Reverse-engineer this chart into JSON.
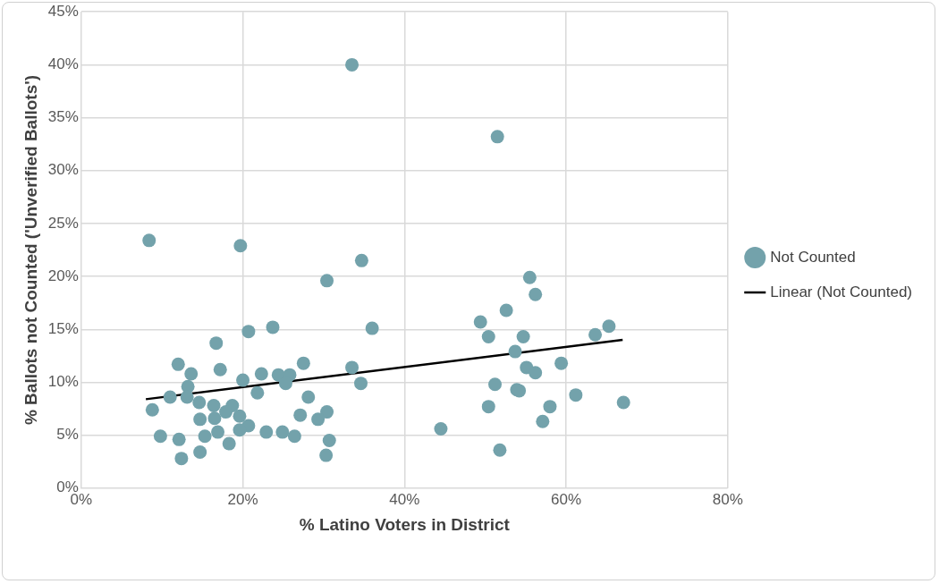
{
  "chart_data": {
    "type": "scatter",
    "xlabel": "% Latino Voters in District",
    "ylabel": "% Ballots not Counted ('Unverified Ballots')",
    "xlim": [
      0,
      80
    ],
    "xticks": [
      {
        "value": 0,
        "label": "0%"
      },
      {
        "value": 20,
        "label": "20%"
      },
      {
        "value": 40,
        "label": "40%"
      },
      {
        "value": 60,
        "label": "60%"
      },
      {
        "value": 80,
        "label": "80%"
      }
    ],
    "ylim": [
      0,
      45
    ],
    "yticks": [
      {
        "value": 0,
        "label": "0%"
      },
      {
        "value": 5,
        "label": "5%"
      },
      {
        "value": 10,
        "label": "10%"
      },
      {
        "value": 15,
        "label": "15%"
      },
      {
        "value": 20,
        "label": "20%"
      },
      {
        "value": 25,
        "label": "25%"
      },
      {
        "value": 30,
        "label": "30%"
      },
      {
        "value": 35,
        "label": "35%"
      },
      {
        "value": 40,
        "label": "40%"
      },
      {
        "value": 45,
        "label": "45%"
      }
    ],
    "grid": true,
    "legend": "right",
    "marker": "circle",
    "series": [
      {
        "name": "Not Counted",
        "color": "#73a2ab",
        "x": [
          8.4,
          33.5,
          51.5,
          19.7,
          34.7,
          30.4,
          55.5,
          56.2,
          49.4,
          52.6,
          65.3,
          63.6,
          50.4,
          54.7,
          36,
          23.7,
          20.7,
          16.7,
          53.7,
          59.4,
          55.1,
          56.2,
          33.5,
          27.5,
          12,
          17.2,
          13.6,
          22.3,
          24.4,
          25.8,
          25.3,
          34.6,
          51.2,
          53.9,
          54.2,
          20,
          13.2,
          21.8,
          11,
          13.1,
          28.1,
          61.2,
          67.1,
          14.6,
          16.4,
          18.7,
          8.8,
          17.9,
          19.6,
          14.7,
          16.5,
          27.1,
          30.4,
          29.3,
          58,
          50.4,
          57.1,
          20.7,
          19.6,
          16.9,
          22.9,
          24.9,
          26.4,
          15.3,
          9.8,
          12.1,
          30.7,
          44.5,
          18.3,
          14.7,
          12.4,
          30.3,
          51.8
        ],
        "values": [
          23.4,
          40,
          33.2,
          22.9,
          21.5,
          19.6,
          19.9,
          18.3,
          15.7,
          16.8,
          15.3,
          14.5,
          14.3,
          14.3,
          15.1,
          15.2,
          14.8,
          13.7,
          12.9,
          11.8,
          11.4,
          10.9,
          11.4,
          11.8,
          11.7,
          11.2,
          10.8,
          10.8,
          10.7,
          10.7,
          9.9,
          9.9,
          9.8,
          9.3,
          9.2,
          10.2,
          9.6,
          9,
          8.6,
          8.6,
          8.6,
          8.8,
          8.1,
          8.1,
          7.8,
          7.8,
          7.4,
          7.2,
          6.8,
          6.5,
          6.6,
          6.9,
          7.2,
          6.5,
          7.7,
          7.7,
          6.3,
          5.9,
          5.5,
          5.3,
          5.3,
          5.3,
          4.9,
          4.9,
          4.9,
          4.6,
          4.5,
          5.6,
          4.2,
          3.4,
          2.8,
          3.1,
          3.6
        ]
      },
      {
        "name": "Linear (Not Counted)",
        "type": "line",
        "color": "#000000",
        "marker": "none",
        "x": [
          8,
          67
        ],
        "values": [
          8.4,
          14.0
        ]
      }
    ]
  }
}
